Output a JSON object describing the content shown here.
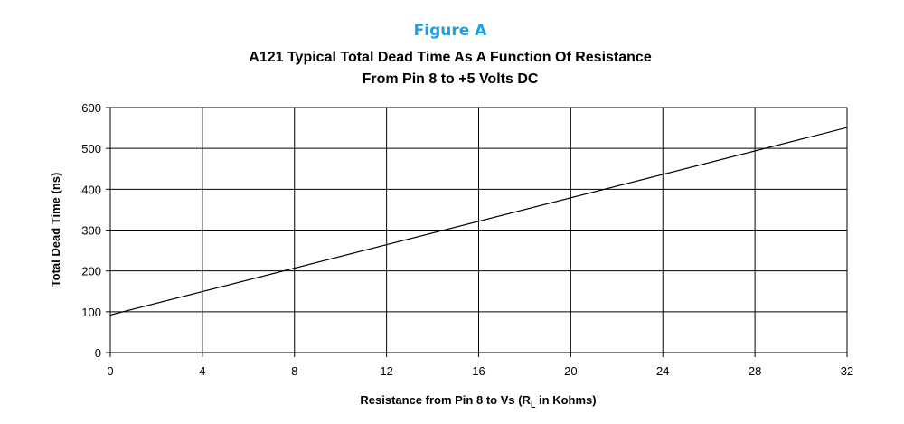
{
  "figure_label": "Figure A",
  "colors": {
    "figure_label": "#1a9fe8",
    "line": "#000000",
    "grid": "#000000",
    "background": "#ffffff"
  },
  "chart_data": {
    "type": "line",
    "title": [
      "A121 Typical Total Dead Time As A Function Of Resistance",
      "From Pin 8 to +5 Volts DC"
    ],
    "xlabel": {
      "before": "Resistance from Pin 8 to Vs (R",
      "subscript": "L",
      "after": " in Kohms)"
    },
    "ylabel": "Total Dead Time (ns)",
    "xlim": [
      0,
      32
    ],
    "ylim": [
      0,
      600
    ],
    "xticks": [
      0,
      4,
      8,
      12,
      16,
      20,
      24,
      28,
      32
    ],
    "yticks": [
      0,
      100,
      200,
      300,
      400,
      500,
      600
    ],
    "grid": true,
    "series": [
      {
        "x": [
          0,
          32
        ],
        "y": [
          92,
          551
        ]
      }
    ]
  }
}
